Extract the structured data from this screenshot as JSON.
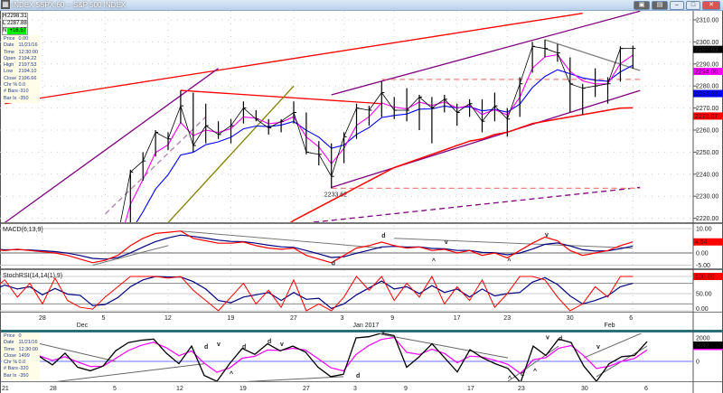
{
  "window": {
    "title": "INDEX $SPX,60 -- S&P 500 INDEX",
    "buttons": [
      "minimize",
      "maximize",
      "close"
    ]
  },
  "hl_boxes": [
    {
      "key": "H",
      "value": "2298.31"
    },
    {
      "key": "L",
      "value": "2287.88"
    },
    {
      "key": "N",
      "value": "+16.57"
    }
  ],
  "info_main": [
    {
      "label": "Price",
      "value": "0.00"
    },
    {
      "label": "Date",
      "value": "11/21/16"
    },
    {
      "label": "Time",
      "value": "12:30:00"
    },
    {
      "label": "Open",
      "value": "2194.22"
    },
    {
      "label": "High",
      "value": "2197.53"
    },
    {
      "label": "Low",
      "value": "2194.10"
    },
    {
      "label": "Close",
      "value": "2196.66"
    },
    {
      "label": "Chr %",
      "value": "0.0"
    },
    {
      "label": "# Bars",
      "value": "-310"
    },
    {
      "label": "Bar Ix",
      "value": "-350"
    }
  ],
  "info_bottom": [
    {
      "label": "Price",
      "value": "0"
    },
    {
      "label": "Date",
      "value": "11/21/16"
    },
    {
      "label": "Time",
      "value": "12:30:00"
    },
    {
      "label": "Close",
      "value": "1499"
    },
    {
      "label": "Chr %",
      "value": "0.0"
    },
    {
      "label": "# Bars",
      "value": "-320"
    },
    {
      "label": "Bar Ix",
      "value": "-350"
    }
  ],
  "colors": {
    "price": "#000000",
    "ema_fast": "#ff00ff",
    "ema_mid": "#0000ff",
    "ma_long": "#ff0000",
    "channel": "#800080",
    "macd": "#ff0000",
    "signal": "#000080",
    "stoch_k": "#ff0000",
    "stoch_d": "#000080",
    "breadth": "#000000",
    "breadth_ma": "#ff00ff"
  },
  "chart_data": [
    {
      "type": "line",
      "panel": "price",
      "price_axis": {
        "ylim": [
          2216,
          2313
        ],
        "ticks": [
          "2310.00",
          "2300.00",
          "2290.00",
          "2280.00",
          "2270.00",
          "2260.00",
          "2250.00",
          "2240.00",
          "2230.00",
          "2220.00"
        ]
      },
      "last_value_labels": [
        {
          "text": "2297.03",
          "series": "price",
          "bg": "#000000",
          "fg": "#ffffff",
          "value": 2297.03
        },
        {
          "text": "2294.00",
          "series": "ema_fast",
          "bg": "#ff00ff",
          "fg": "#ffffff",
          "value": 2294.0
        },
        {
          "text": "2284.37",
          "series": "ema_mid",
          "bg": "#0000ff",
          "fg": "#ffffff",
          "value": 2284.37
        },
        {
          "text": "2270.07",
          "series": "ma_long",
          "bg": "#ff0000",
          "fg": "#ffffff",
          "value": 2270.07
        }
      ],
      "dates": [
        "2016-11-21",
        "2016-11-22",
        "2016-11-23",
        "2016-11-25",
        "2016-11-28",
        "2016-11-29",
        "2016-11-30",
        "2016-12-01",
        "2016-12-02",
        "2016-12-05",
        "2016-12-06",
        "2016-12-07",
        "2016-12-08",
        "2016-12-09",
        "2016-12-12",
        "2016-12-13",
        "2016-12-14",
        "2016-12-15",
        "2016-12-16",
        "2016-12-19",
        "2016-12-20",
        "2016-12-21",
        "2016-12-22",
        "2016-12-23",
        "2016-12-27",
        "2016-12-28",
        "2016-12-29",
        "2016-12-30",
        "2017-01-03",
        "2017-01-04",
        "2017-01-05",
        "2017-01-06",
        "2017-01-09",
        "2017-01-10",
        "2017-01-11",
        "2017-01-12",
        "2017-01-13",
        "2017-01-17",
        "2017-01-18",
        "2017-01-19",
        "2017-01-20",
        "2017-01-23",
        "2017-01-24",
        "2017-01-25",
        "2017-01-26",
        "2017-01-27",
        "2017-01-30",
        "2017-01-31",
        "2017-02-01",
        "2017-02-02",
        "2017-02-03",
        "2017-02-06"
      ],
      "close": [
        2198,
        2203,
        2204,
        2213,
        2202,
        2205,
        2199,
        2191,
        2192,
        2204,
        2212,
        2241,
        2246,
        2259,
        2256,
        2271,
        2253,
        2262,
        2258,
        2262,
        2270,
        2265,
        2261,
        2264,
        2268,
        2250,
        2249,
        2239,
        2257,
        2270,
        2269,
        2277,
        2269,
        2269,
        2275,
        2270,
        2274,
        2268,
        2272,
        2264,
        2271,
        2265,
        2281,
        2298,
        2297,
        2295,
        2281,
        2279,
        2280,
        2281,
        2297,
        2297.03
      ],
      "high": [
        2200,
        2204,
        2205,
        2214,
        2212,
        2206,
        2210,
        2200,
        2193,
        2206,
        2213,
        2242,
        2250,
        2260,
        2259,
        2278,
        2277,
        2272,
        2264,
        2265,
        2273,
        2269,
        2265,
        2265,
        2273,
        2268,
        2255,
        2254,
        2259,
        2272,
        2271,
        2282,
        2275,
        2279,
        2276,
        2275,
        2276,
        2272,
        2274,
        2274,
        2277,
        2270,
        2284,
        2300,
        2301,
        2299,
        2293,
        2281,
        2288,
        2284,
        2298,
        2298.31
      ],
      "low": [
        2194,
        2198,
        2197,
        2206,
        2199,
        2198,
        2198,
        2187,
        2189,
        2191,
        2203,
        2211,
        2237,
        2248,
        2251,
        2263,
        2250,
        2254,
        2256,
        2254,
        2263,
        2264,
        2258,
        2259,
        2263,
        2249,
        2244,
        2233.62,
        2245,
        2256,
        2262,
        2266,
        2265,
        2264,
        2260,
        2254,
        2268,
        2262,
        2266,
        2259,
        2264,
        2257,
        2266,
        2286,
        2293,
        2291,
        2268,
        2267,
        2275,
        2272,
        2282,
        2287.88
      ],
      "ma_long": [
        null,
        null,
        null,
        null,
        null,
        null,
        null,
        null,
        null,
        null,
        null,
        null,
        null,
        null,
        null,
        null,
        null,
        null,
        null,
        null,
        null,
        null,
        null,
        2215,
        2219,
        2222,
        2225,
        2228,
        2231,
        2234,
        2237,
        2240,
        2243,
        2245,
        2247,
        2249,
        2251,
        2253,
        2255,
        2256,
        2258,
        2259,
        2261,
        2263,
        2264,
        2265,
        2266,
        2267,
        2268,
        2269,
        2270,
        2270.07
      ],
      "low_annotation": {
        "text": "2233.62",
        "date": "2016-12-30",
        "value": 2233.62
      },
      "trendlines": [
        {
          "color": "#ff0000",
          "dash": false,
          "from": [
            "2016-11-22",
            2272
          ],
          "to": [
            "2017-01-31",
            2313
          ]
        },
        {
          "color": "#800080",
          "dash": false,
          "from": [
            "2016-11-22",
            2218
          ],
          "to": [
            "2016-12-16",
            2288
          ]
        },
        {
          "color": "#800080",
          "dash": false,
          "from": [
            "2016-12-30",
            2276
          ],
          "to": [
            "2017-02-06",
            2314
          ]
        },
        {
          "color": "#800080",
          "dash": false,
          "from": [
            "2016-12-30",
            2234
          ],
          "to": [
            "2017-02-06",
            2278
          ]
        },
        {
          "color": "#ff0000",
          "dash": false,
          "from": [
            "2016-12-13",
            2278
          ],
          "to": [
            "2017-01-06",
            2272
          ]
        },
        {
          "color": "#808000",
          "dash": false,
          "from": [
            "2016-12-12",
            2218
          ],
          "to": [
            "2016-12-27",
            2280
          ]
        },
        {
          "color": "#800080",
          "dash": true,
          "from": [
            "2016-12-22",
            2216
          ],
          "to": [
            "2017-02-06",
            2234
          ]
        },
        {
          "color": "#f08080",
          "dash": true,
          "from": [
            "2017-01-06",
            2283
          ],
          "to": [
            "2017-02-06",
            2283
          ]
        },
        {
          "color": "#f08080",
          "dash": true,
          "from": [
            "2016-12-30",
            2233.62
          ],
          "to": [
            "2017-02-06",
            2233.62
          ]
        },
        {
          "color": "#b080b0",
          "dash": true,
          "from": [
            "2016-12-05",
            2222
          ],
          "to": [
            "2016-12-15",
            2266
          ]
        },
        {
          "color": "#808080",
          "dash": false,
          "from": [
            "2017-01-26",
            2301
          ],
          "to": [
            "2017-02-06",
            2287
          ]
        }
      ]
    },
    {
      "type": "line",
      "panel": "macd",
      "title": "MACD(6,13,9)",
      "ylim": [
        -6,
        11
      ],
      "ticks": [
        "10.00",
        "0.00",
        "-5.00"
      ],
      "last_value_label": {
        "text": "4.54",
        "bg": "#ff0000",
        "fg": "#ffffff"
      },
      "macd": [
        1.5,
        1,
        1.5,
        1,
        0.5,
        0,
        -1,
        -2.5,
        -4,
        -3,
        -1,
        3,
        6,
        8,
        8.5,
        9,
        6,
        5,
        4,
        4,
        4.5,
        3,
        2,
        1.5,
        2,
        -1,
        -2.5,
        -4,
        -1,
        2,
        3,
        4.5,
        3,
        2,
        2.5,
        1,
        1.5,
        0,
        1,
        -1,
        0,
        -2,
        1,
        4,
        6.5,
        5,
        1,
        -1,
        0,
        1,
        3,
        4.54
      ],
      "annotations": [
        {
          "text": "d",
          "color": "#008000",
          "date": "2016-12-30",
          "value": -5
        },
        {
          "text": "d",
          "color": "#ff0000",
          "date": "2017-01-06",
          "value": 6.3
        },
        {
          "text": "v",
          "color": "#ff0000",
          "date": "2017-01-13",
          "value": 3.7
        },
        {
          "text": "^",
          "color": "#0000ff",
          "date": "2017-01-12",
          "value": -4
        },
        {
          "text": "^",
          "color": "#0000ff",
          "date": "2017-01-23",
          "value": -4
        },
        {
          "text": "v",
          "color": "#ff0000",
          "date": "2017-01-26",
          "value": 6.7
        }
      ],
      "trendlines": [
        {
          "from": [
            "2016-12-02",
            -5
          ],
          "to": [
            "2016-12-12",
            3
          ]
        },
        {
          "from": [
            "2016-12-13",
            9
          ],
          "to": [
            "2017-01-06",
            2
          ]
        },
        {
          "from": [
            "2017-01-09",
            6
          ],
          "to": [
            "2017-02-06",
            2
          ]
        }
      ]
    },
    {
      "type": "line",
      "panel": "stochrsi",
      "title": "StochRSI(14,14(1),9)",
      "ylim": [
        0,
        100
      ],
      "ticks": [
        "50.00",
        "0.00"
      ],
      "last_value_label": {
        "text": "100.00",
        "bg": "#ff0000",
        "fg": "#ffffff"
      },
      "k": [
        60,
        90,
        40,
        80,
        20,
        95,
        30,
        10,
        5,
        40,
        70,
        100,
        100,
        100,
        95,
        100,
        60,
        30,
        0,
        40,
        80,
        20,
        60,
        10,
        90,
        0,
        20,
        0,
        40,
        100,
        60,
        100,
        30,
        80,
        40,
        100,
        20,
        70,
        30,
        90,
        10,
        50,
        100,
        100,
        90,
        40,
        0,
        20,
        70,
        40,
        100,
        100
      ]
    },
    {
      "type": "line",
      "panel": "breadth",
      "ticks": [
        "2000",
        "0"
      ],
      "last_value_label": {
        "text": "1692",
        "bg": "#000000",
        "fg": "#ffffff"
      },
      "values": [
        300,
        0,
        900,
        400,
        -300,
        700,
        -500,
        -800,
        -400,
        900,
        1600,
        1800,
        1900,
        700,
        -200,
        1300,
        -1200,
        -1700,
        -200,
        1100,
        600,
        1500,
        900,
        1300,
        800,
        -500,
        -1300,
        -1100,
        2000,
        2100,
        2400,
        2200,
        -500,
        400,
        1500,
        300,
        -900,
        1000,
        300,
        -200,
        -600,
        -1800,
        1300,
        500,
        1900,
        1600,
        -400,
        -1700,
        -200,
        400,
        500,
        1692
      ],
      "annotations": [
        {
          "text": "d",
          "color": "#ff0000",
          "date": "2016-12-14",
          "value": 1077
        },
        {
          "text": "v",
          "color": "#ff0000",
          "date": "2016-12-15",
          "value": 1300
        },
        {
          "text": "^",
          "color": "#0000ff",
          "date": "2016-12-16",
          "value": -1230
        },
        {
          "text": "d",
          "color": "#008000",
          "date": "2016-12-19",
          "value": 1077
        },
        {
          "text": "d",
          "color": "#ff0000",
          "date": "2016-12-21",
          "value": 1540
        },
        {
          "text": "v",
          "color": "#ff0000",
          "date": "2016-12-22",
          "value": 1300
        },
        {
          "text": "d",
          "color": "#008000",
          "date": "2017-01-03",
          "value": -1380
        },
        {
          "text": "v",
          "color": "#ff0000",
          "date": "2017-01-05",
          "value": 2300
        },
        {
          "text": "^",
          "color": "#0000ff",
          "date": "2017-01-20",
          "value": -1600
        },
        {
          "text": "d",
          "color": "#008000",
          "date": "2017-01-23",
          "value": -1230
        },
        {
          "text": "^",
          "color": "#0000ff",
          "date": "2017-01-24",
          "value": -1000
        },
        {
          "text": "v",
          "color": "#ff0000",
          "date": "2017-01-25",
          "value": 1900
        },
        {
          "text": "d",
          "color": "#ff0000",
          "date": "2017-01-26",
          "value": 1770
        },
        {
          "text": "v",
          "color": "#ff0000",
          "date": "2017-01-31",
          "value": 1080
        }
      ],
      "trendlines": [
        {
          "from": [
            "2016-11-25",
            1500
          ],
          "to": [
            "2016-12-05",
            0
          ]
        },
        {
          "from": [
            "2016-11-25",
            -1900
          ],
          "to": [
            "2016-12-14",
            -200
          ]
        },
        {
          "from": [
            "2017-01-05",
            2300
          ],
          "to": [
            "2017-01-20",
            300
          ]
        },
        {
          "from": [
            "2017-01-20",
            -1700
          ],
          "to": [
            "2017-01-26",
            1300
          ]
        },
        {
          "from": [
            "2017-01-30",
            300
          ],
          "to": [
            "2017-02-06",
            2600
          ]
        },
        {
          "from": [
            "2017-01-31",
            -1300
          ],
          "to": [
            "2017-02-06",
            1300
          ]
        },
        {
          "from": [
            "2016-12-16",
            -1800
          ],
          "to": [
            "2016-12-30",
            -1300
          ]
        }
      ]
    }
  ],
  "x_axis_main": [
    {
      "label": "28",
      "date": "2016-11-28"
    },
    {
      "label": "Dec",
      "date": "2016-12-01",
      "row": 2
    },
    {
      "label": "5",
      "date": "2016-12-05"
    },
    {
      "label": "12",
      "date": "2016-12-12"
    },
    {
      "label": "19",
      "date": "2016-12-19"
    },
    {
      "label": "27",
      "date": "2016-12-27"
    },
    {
      "label": "3",
      "date": "2017-01-03"
    },
    {
      "label": "Jan 2017",
      "date": "2017-01-04",
      "row": 2
    },
    {
      "label": "9",
      "date": "2017-01-09"
    },
    {
      "label": "17",
      "date": "2017-01-17"
    },
    {
      "label": "23",
      "date": "2017-01-23"
    },
    {
      "label": "30",
      "date": "2017-01-30"
    },
    {
      "label": "Feb",
      "date": "2017-02-02",
      "row": 2
    },
    {
      "label": "6",
      "date": "2017-02-06"
    }
  ],
  "x_axis_bottom": [
    {
      "label": "21",
      "date": "2016-11-21"
    },
    {
      "label": "28",
      "date": "2016-11-28"
    },
    {
      "label": "5",
      "date": "2016-12-05"
    },
    {
      "label": "12",
      "date": "2016-12-12"
    },
    {
      "label": "19",
      "date": "2016-12-19"
    },
    {
      "label": "27",
      "date": "2016-12-27"
    },
    {
      "label": "3",
      "date": "2017-01-03"
    },
    {
      "label": "9",
      "date": "2017-01-09"
    },
    {
      "label": "17",
      "date": "2017-01-17"
    },
    {
      "label": "23",
      "date": "2017-01-23"
    },
    {
      "label": "30",
      "date": "2017-01-30"
    },
    {
      "label": "6",
      "date": "2017-02-06"
    }
  ]
}
